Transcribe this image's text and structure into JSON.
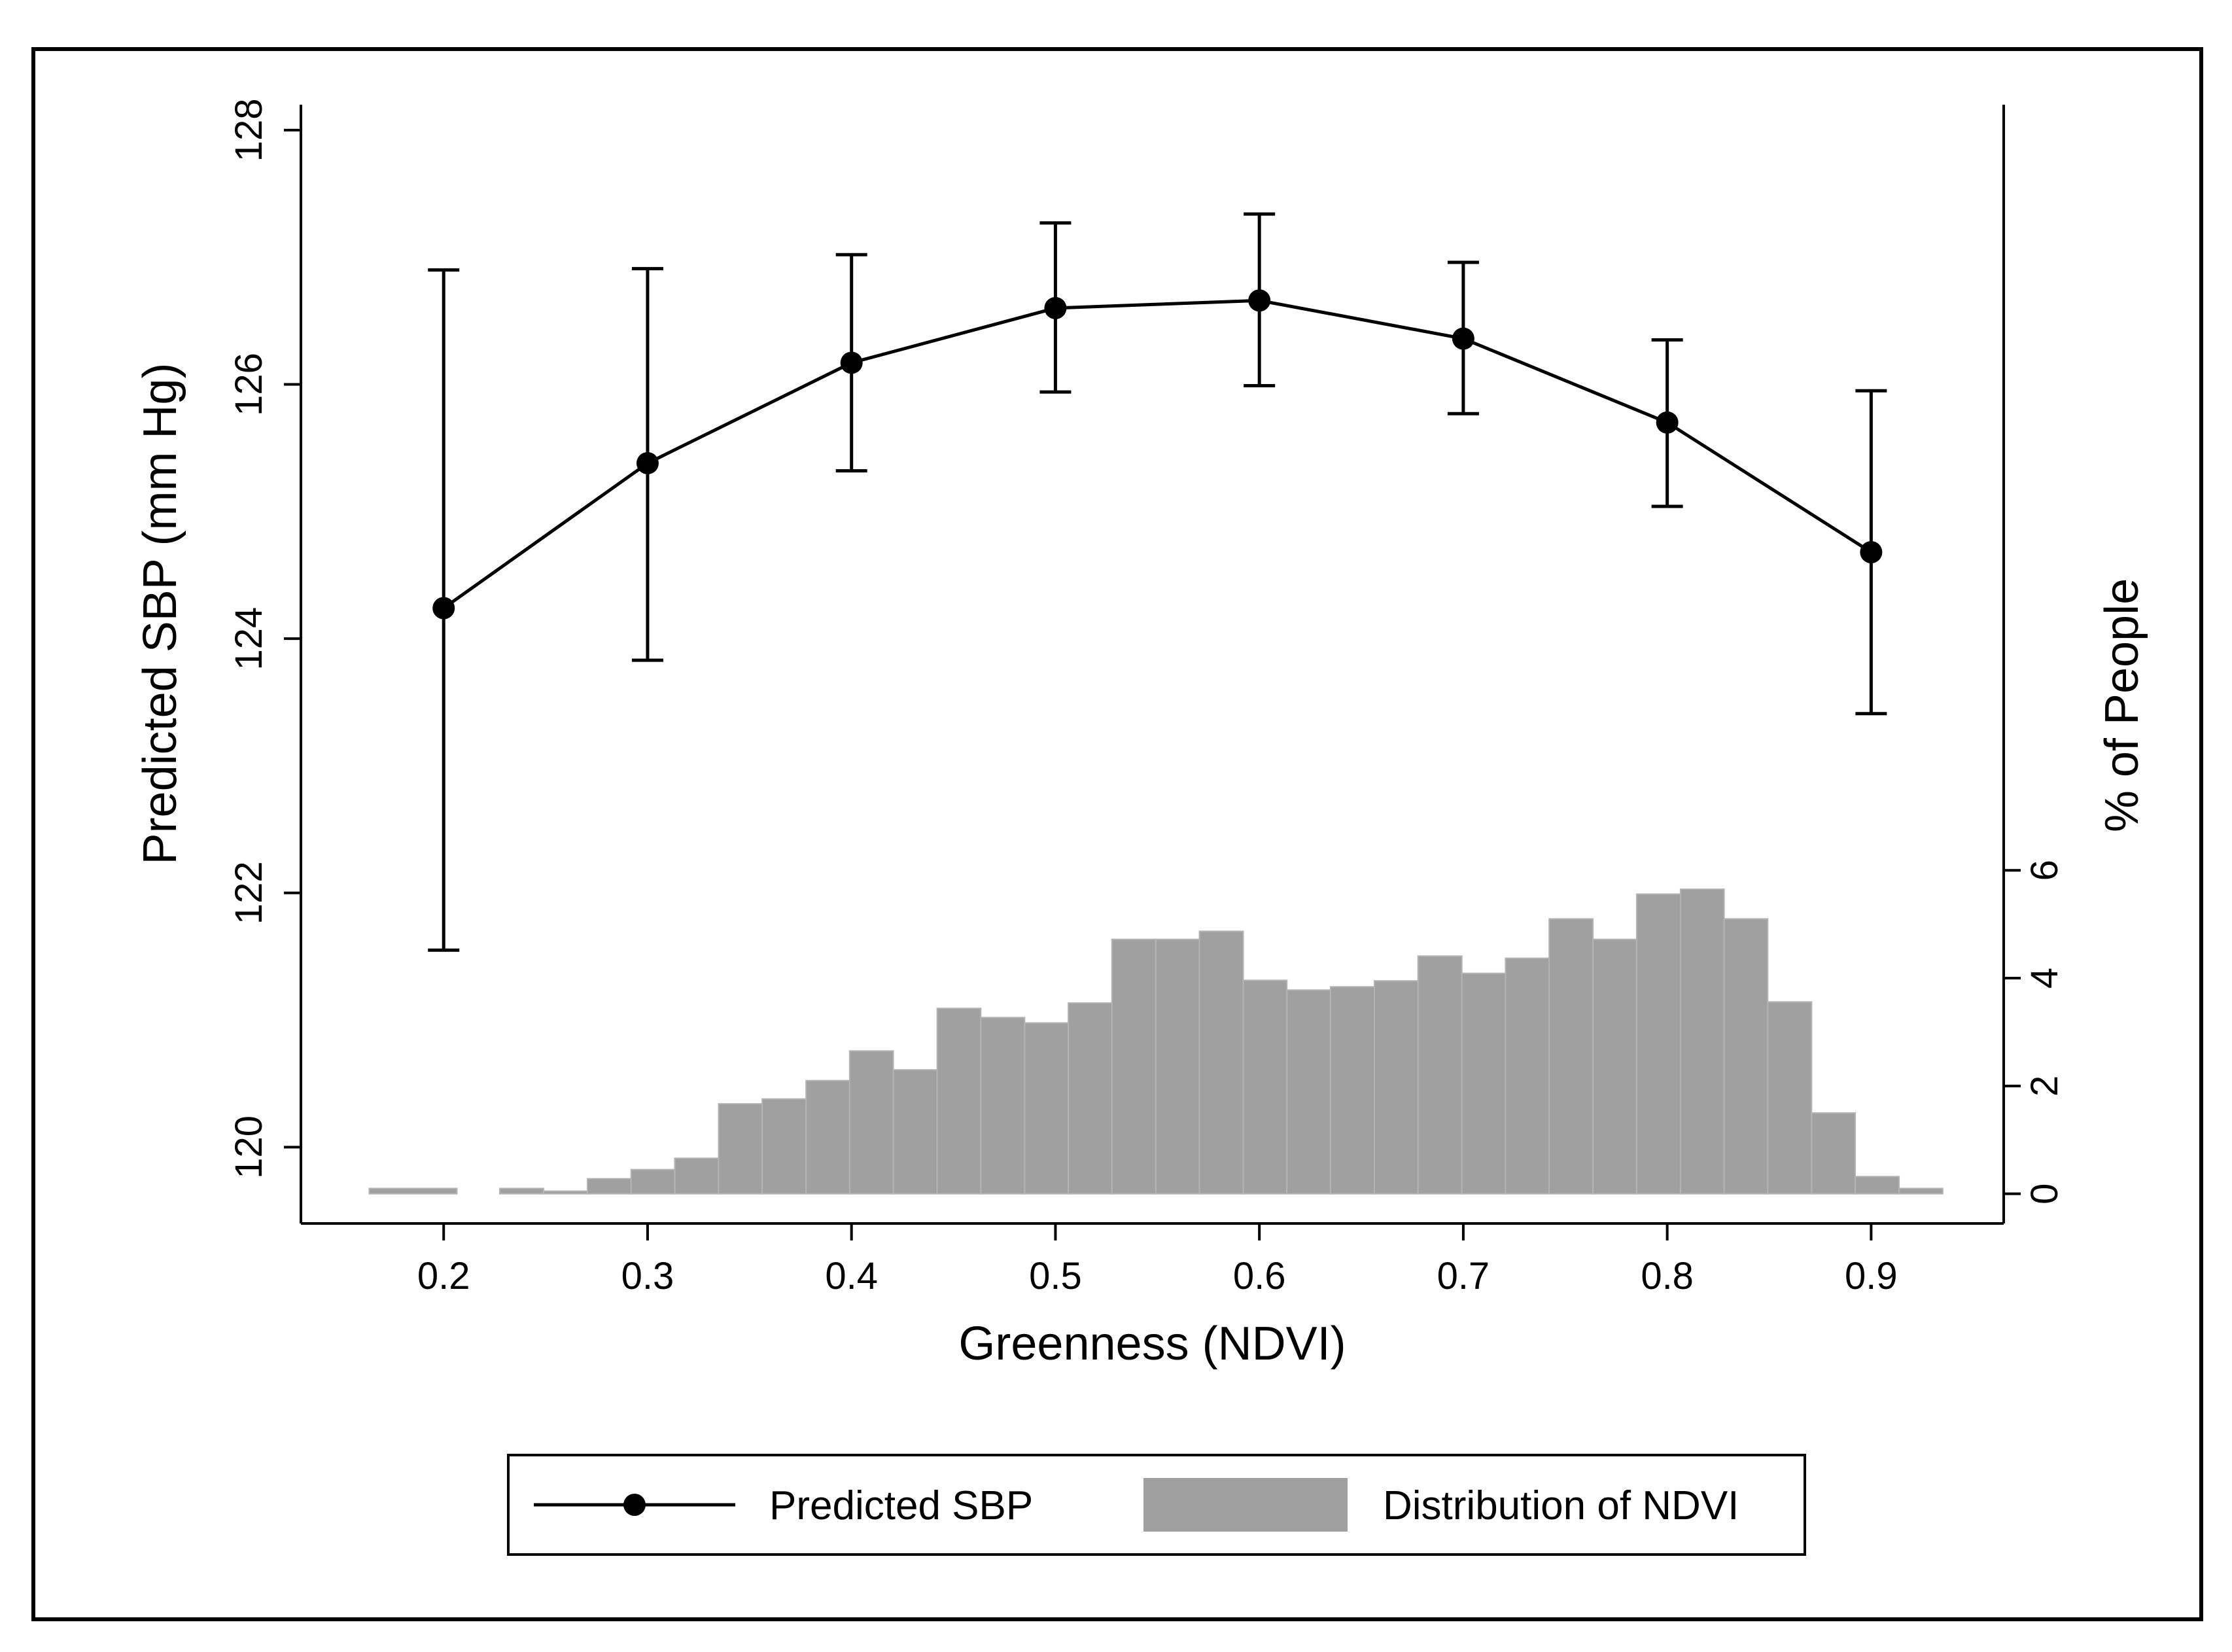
{
  "chart_data": {
    "type": "line",
    "xlabel": "Greenness (NDVI)",
    "ylabel": "Predicted SBP (mm Hg)",
    "y2label": "% of People",
    "xlim": [
      0.13,
      0.965
    ],
    "ylim": [
      119.4,
      128.2
    ],
    "y2lim": [
      -0.55,
      20.2
    ],
    "x_ticks": [
      0.2,
      0.3,
      0.4,
      0.5,
      0.6,
      0.7,
      0.8,
      0.9
    ],
    "x_tick_labels": [
      "0.2",
      "0.3",
      "0.4",
      "0.5",
      "0.6",
      "0.7",
      "0.8",
      "0.9"
    ],
    "y_ticks": [
      120,
      122,
      124,
      126,
      128
    ],
    "y_tick_labels": [
      "120",
      "122",
      "124",
      "126",
      "128"
    ],
    "y2_ticks": [
      0,
      2,
      4,
      6
    ],
    "y2_tick_labels": [
      "0",
      "2",
      "4",
      "6"
    ],
    "grid": false,
    "legend_position": "bottom",
    "line_series": {
      "name": "Predicted SBP",
      "color": "#000000",
      "x": [
        0.2,
        0.3,
        0.4,
        0.5,
        0.6,
        0.7,
        0.8,
        0.9
      ],
      "y": [
        124.24,
        125.38,
        126.17,
        126.6,
        126.66,
        126.36,
        125.7,
        124.68
      ],
      "ci_low": [
        121.55,
        123.83,
        125.32,
        125.94,
        125.99,
        125.77,
        125.04,
        123.41
      ],
      "ci_high": [
        126.9,
        126.91,
        127.02,
        127.27,
        127.34,
        126.96,
        126.35,
        125.95
      ]
    },
    "histogram_series": {
      "name": "Distribution of NDVI",
      "color": "#a0a0a0",
      "bin_width": 0.0214,
      "bins": [
        {
          "x0": 0.1635,
          "x1": 0.2065,
          "v": 0.1
        },
        {
          "x0": 0.2275,
          "x1": 0.249,
          "v": 0.1
        },
        {
          "x0": 0.249,
          "x1": 0.2705,
          "v": 0.05
        },
        {
          "x0": 0.2705,
          "x1": 0.2919,
          "v": 0.28
        },
        {
          "x0": 0.2919,
          "x1": 0.3133,
          "v": 0.45
        },
        {
          "x0": 0.3133,
          "x1": 0.3348,
          "v": 0.66
        },
        {
          "x0": 0.3348,
          "x1": 0.3562,
          "v": 1.67
        },
        {
          "x0": 0.3562,
          "x1": 0.3777,
          "v": 1.76
        },
        {
          "x0": 0.3777,
          "x1": 0.3991,
          "v": 2.1
        },
        {
          "x0": 0.3991,
          "x1": 0.4205,
          "v": 2.65
        },
        {
          "x0": 0.4205,
          "x1": 0.442,
          "v": 2.3
        },
        {
          "x0": 0.442,
          "x1": 0.4634,
          "v": 3.44
        },
        {
          "x0": 0.4634,
          "x1": 0.4849,
          "v": 3.27
        },
        {
          "x0": 0.4849,
          "x1": 0.5063,
          "v": 3.17
        },
        {
          "x0": 0.5063,
          "x1": 0.5277,
          "v": 3.54
        },
        {
          "x0": 0.5277,
          "x1": 0.5492,
          "v": 4.72
        },
        {
          "x0": 0.5492,
          "x1": 0.5706,
          "v": 4.72
        },
        {
          "x0": 0.5706,
          "x1": 0.5921,
          "v": 4.87
        },
        {
          "x0": 0.5921,
          "x1": 0.6135,
          "v": 3.96
        },
        {
          "x0": 0.6135,
          "x1": 0.6349,
          "v": 3.78
        },
        {
          "x0": 0.6349,
          "x1": 0.6564,
          "v": 3.84
        },
        {
          "x0": 0.6564,
          "x1": 0.6778,
          "v": 3.95
        },
        {
          "x0": 0.6778,
          "x1": 0.6993,
          "v": 4.41
        },
        {
          "x0": 0.6993,
          "x1": 0.7207,
          "v": 4.09
        },
        {
          "x0": 0.7207,
          "x1": 0.7421,
          "v": 4.37
        },
        {
          "x0": 0.7421,
          "x1": 0.7636,
          "v": 5.1
        },
        {
          "x0": 0.7636,
          "x1": 0.785,
          "v": 4.72
        },
        {
          "x0": 0.785,
          "x1": 0.8065,
          "v": 5.56
        },
        {
          "x0": 0.8065,
          "x1": 0.8279,
          "v": 5.65
        },
        {
          "x0": 0.8279,
          "x1": 0.8493,
          "v": 5.1
        },
        {
          "x0": 0.8493,
          "x1": 0.8708,
          "v": 3.56
        },
        {
          "x0": 0.8708,
          "x1": 0.8922,
          "v": 1.5
        },
        {
          "x0": 0.8922,
          "x1": 0.9137,
          "v": 0.32
        },
        {
          "x0": 0.9137,
          "x1": 0.9351,
          "v": 0.1
        }
      ]
    },
    "legend": [
      {
        "name": "Predicted SBP",
        "kind": "line-marker"
      },
      {
        "name": "Distribution of NDVI",
        "kind": "bar"
      }
    ]
  }
}
